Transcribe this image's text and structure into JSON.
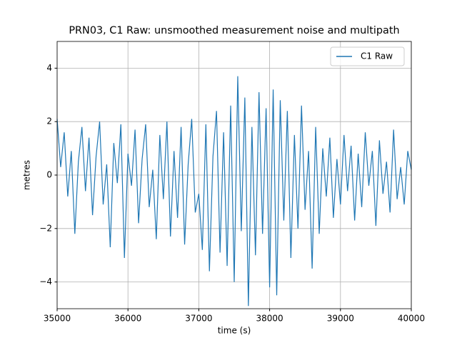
{
  "chart_data": {
    "type": "line",
    "title": "PRN03, C1 Raw: unsmoothed measurement noise and multipath",
    "x_label": "time (s)",
    "y_label": "metres",
    "x": [
      35000,
      35050,
      35100,
      35150,
      35200,
      35250,
      35300,
      35350,
      35400,
      35450,
      35500,
      35550,
      35600,
      35650,
      35700,
      35750,
      35800,
      35850,
      35900,
      35950,
      36000,
      36050,
      36100,
      36150,
      36200,
      36250,
      36300,
      36350,
      36400,
      36450,
      36500,
      36550,
      36600,
      36650,
      36700,
      36750,
      36800,
      36850,
      36900,
      36950,
      37000,
      37050,
      37100,
      37150,
      37200,
      37250,
      37300,
      37350,
      37400,
      37450,
      37500,
      37550,
      37600,
      37650,
      37700,
      37750,
      37800,
      37850,
      37900,
      37950,
      38000,
      38050,
      38100,
      38150,
      38200,
      38250,
      38300,
      38350,
      38400,
      38450,
      38500,
      38550,
      38600,
      38650,
      38700,
      38750,
      38800,
      38850,
      38900,
      38950,
      39000,
      39050,
      39100,
      39150,
      39200,
      39250,
      39300,
      39350,
      39400,
      39450,
      39500,
      39550,
      39600,
      39650,
      39700,
      39750,
      39800,
      39850,
      39900,
      39950,
      40000
    ],
    "series": [
      {
        "name": "C1 Raw",
        "color": "#1f77b4",
        "values": [
          2.1,
          0.3,
          1.6,
          -0.8,
          0.9,
          -2.2,
          0.5,
          1.8,
          -0.6,
          1.4,
          -1.5,
          0.7,
          2.0,
          -1.1,
          0.4,
          -2.7,
          1.2,
          -0.3,
          1.9,
          -3.1,
          0.8,
          -0.4,
          1.7,
          -1.8,
          0.6,
          1.9,
          -1.2,
          0.2,
          -2.4,
          1.5,
          -0.9,
          2.0,
          -2.3,
          0.9,
          -1.6,
          1.8,
          -2.6,
          0.4,
          2.1,
          -1.4,
          -0.7,
          -2.8,
          1.9,
          -3.6,
          0.7,
          2.4,
          -2.9,
          1.6,
          -3.4,
          2.6,
          -4.0,
          3.7,
          -2.1,
          2.9,
          -4.9,
          1.8,
          -3.0,
          3.1,
          -2.2,
          2.5,
          -4.2,
          3.2,
          -4.5,
          2.8,
          -1.7,
          2.4,
          -3.1,
          1.5,
          -2.0,
          2.6,
          -1.3,
          0.9,
          -3.5,
          1.8,
          -2.2,
          1.0,
          -0.8,
          1.4,
          -1.6,
          0.6,
          -1.1,
          1.5,
          -0.6,
          1.1,
          -1.7,
          0.8,
          -1.2,
          1.6,
          -0.4,
          0.9,
          -1.9,
          1.3,
          -0.7,
          0.5,
          -1.4,
          1.7,
          -0.9,
          0.3,
          -1.1,
          0.9,
          0.2
        ]
      }
    ],
    "xlim": [
      35000,
      40000
    ],
    "ylim": [
      -5,
      5
    ],
    "xticks": [
      35000,
      36000,
      37000,
      38000,
      39000,
      40000
    ],
    "yticks": [
      {
        "value": -4,
        "label": "−4"
      },
      {
        "value": -2,
        "label": "−2"
      },
      0,
      2,
      4
    ],
    "grid": true,
    "legend": "upper right"
  }
}
